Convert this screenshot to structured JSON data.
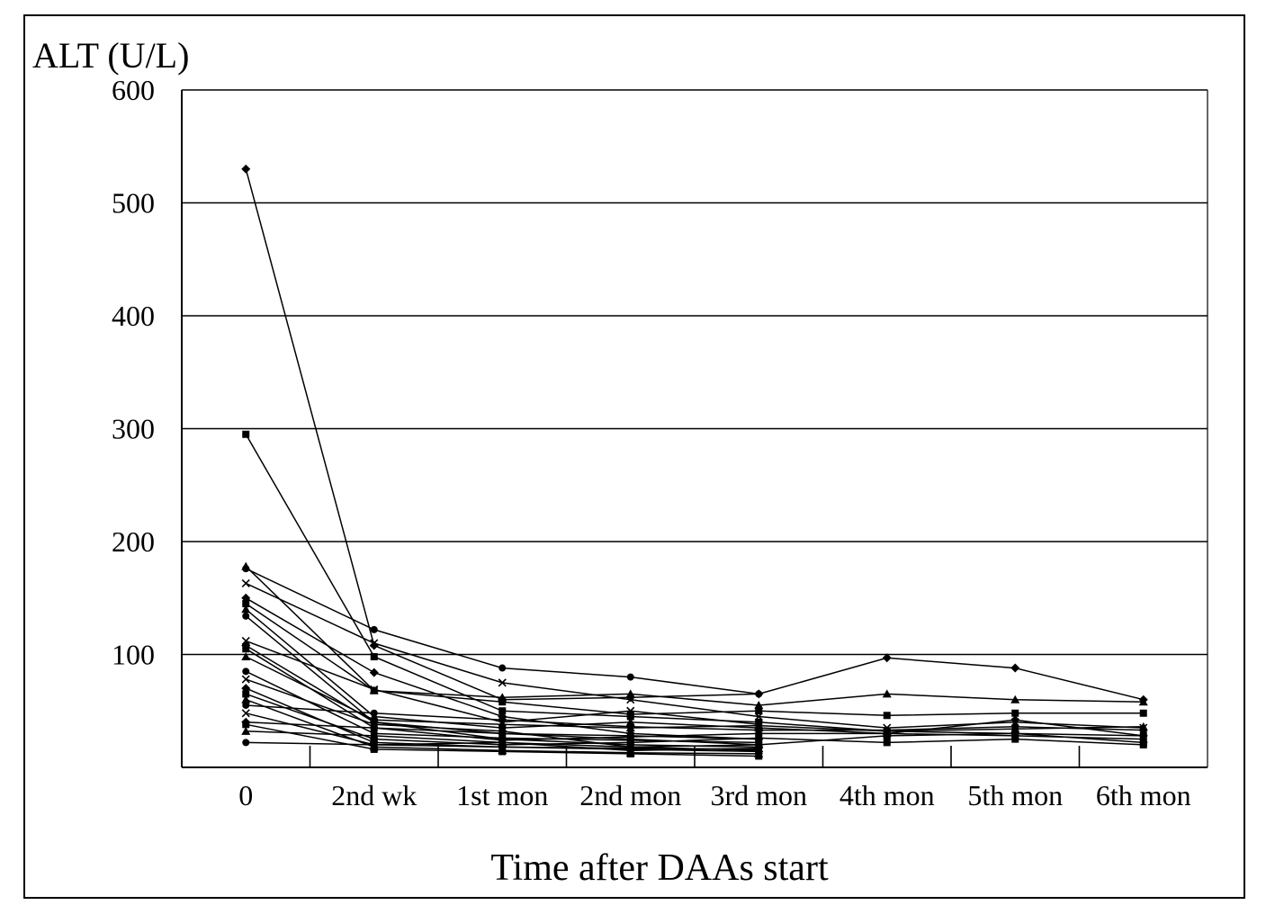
{
  "chart_data": {
    "type": "line",
    "title": "",
    "ylabel": "ALT (U/L)",
    "xlabel": "Time after DAAs start",
    "categories": [
      "0",
      "2nd wk",
      "1st mon",
      "2nd mon",
      "3rd mon",
      "4th mon",
      "5th mon",
      "6th mon"
    ],
    "yticks": [
      "600",
      "500",
      "400",
      "300",
      "200",
      "100"
    ],
    "ylim": [
      0,
      600
    ],
    "grid": "horizontal",
    "legend": "none",
    "series": [
      {
        "values": [
          530,
          108,
          60,
          62,
          65,
          97,
          88,
          60
        ]
      },
      {
        "values": [
          295,
          98,
          50,
          45,
          40,
          32,
          30,
          28
        ]
      },
      {
        "values": [
          178,
          68,
          62,
          65,
          55,
          65,
          60,
          58
        ]
      },
      {
        "values": [
          176,
          122,
          88,
          80,
          65,
          null,
          null,
          null
        ]
      },
      {
        "values": [
          163,
          110,
          75,
          60,
          45,
          35,
          40,
          35
        ]
      },
      {
        "values": [
          150,
          84,
          45,
          30,
          25,
          null,
          null,
          null
        ]
      },
      {
        "values": [
          145,
          68,
          58,
          47,
          50,
          46,
          48,
          48
        ]
      },
      {
        "values": [
          140,
          45,
          35,
          40,
          35,
          30,
          28,
          25
        ]
      },
      {
        "values": [
          134,
          40,
          30,
          28,
          25,
          null,
          null,
          null
        ]
      },
      {
        "values": [
          112,
          69,
          40,
          50,
          38,
          null,
          null,
          null
        ]
      },
      {
        "values": [
          108,
          40,
          25,
          20,
          18,
          null,
          null,
          null
        ]
      },
      {
        "values": [
          105,
          35,
          30,
          25,
          20,
          28,
          30,
          22
        ]
      },
      {
        "values": [
          98,
          42,
          38,
          35,
          37,
          32,
          34,
          36
        ]
      },
      {
        "values": [
          85,
          30,
          26,
          24,
          22,
          null,
          null,
          null
        ]
      },
      {
        "values": [
          78,
          38,
          32,
          18,
          15,
          null,
          null,
          null
        ]
      },
      {
        "values": [
          70,
          22,
          18,
          16,
          14,
          null,
          null,
          null
        ]
      },
      {
        "values": [
          65,
          25,
          20,
          22,
          26,
          22,
          25,
          20
        ]
      },
      {
        "values": [
          60,
          18,
          15,
          13,
          12,
          null,
          null,
          null
        ]
      },
      {
        "values": [
          55,
          48,
          42,
          36,
          33,
          33,
          36,
          33
        ]
      },
      {
        "values": [
          48,
          20,
          22,
          15,
          17,
          null,
          null,
          null
        ]
      },
      {
        "values": [
          40,
          35,
          24,
          27,
          30,
          30,
          42,
          28
        ]
      },
      {
        "values": [
          38,
          16,
          14,
          12,
          10,
          null,
          null,
          null
        ]
      },
      {
        "values": [
          32,
          28,
          22,
          18,
          20,
          null,
          null,
          null
        ]
      },
      {
        "values": [
          22,
          20,
          18,
          17,
          16,
          null,
          null,
          null
        ]
      }
    ]
  }
}
